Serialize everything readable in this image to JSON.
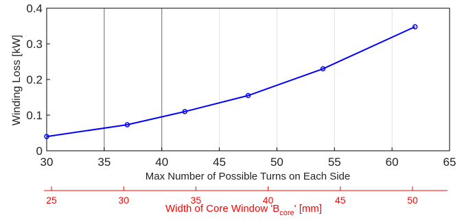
{
  "chart_data": {
    "type": "line",
    "xlabel": "Max Number of Possible Turns on Each Side",
    "ylabel": "Winding Loss [kW]",
    "xlim": [
      30,
      65
    ],
    "ylim": [
      0,
      0.4
    ],
    "xticks": [
      "30",
      "35",
      "40",
      "45",
      "50",
      "55",
      "60",
      "65"
    ],
    "yticks": [
      "0",
      "0.1",
      "0.2",
      "0.3",
      "0.4"
    ],
    "grid": "vertical lines at x = 35 and x = 40",
    "series": [
      {
        "x": [
          30,
          37,
          42,
          47.5,
          54,
          62
        ],
        "y": [
          0.04,
          0.073,
          0.11,
          0.155,
          0.23,
          0.348
        ],
        "color": "#0000ff",
        "marker": "circle"
      }
    ],
    "secondary_axis": {
      "label_main": "Width of Core Window 'B",
      "label_sub": "core",
      "label_end": "' [mm]",
      "ticks": [
        "25",
        "30",
        "35",
        "40",
        "45",
        "50"
      ],
      "color": "#ff0000"
    }
  }
}
